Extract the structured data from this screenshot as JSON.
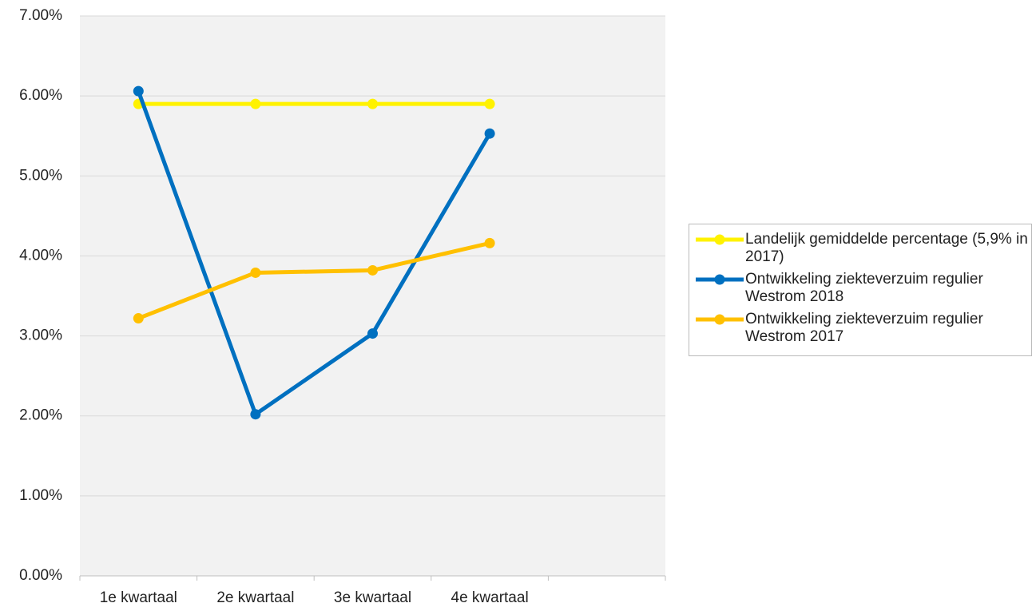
{
  "chart_data": {
    "type": "line",
    "categories": [
      "1e kwartaal",
      "2e kwartaal",
      "3e kwartaal",
      "4e kwartaal",
      null
    ],
    "series": [
      {
        "name": "Landelijk gemiddelde percentage (5,9% in 2017)",
        "color": "#fff200",
        "values": [
          5.9,
          5.9,
          5.9,
          5.9,
          null
        ]
      },
      {
        "name": "Ontwikkeling ziekteverzuim regulier Westrom 2018",
        "color": "#0070c0",
        "values": [
          6.06,
          2.02,
          3.03,
          5.53,
          null
        ]
      },
      {
        "name": "Ontwikkeling ziekteverzuim regulier Westrom 2017",
        "color": "#ffc000",
        "values": [
          3.22,
          3.79,
          3.82,
          4.16,
          null
        ]
      }
    ],
    "ylim": [
      0,
      7
    ],
    "yticks": [
      {
        "value": 0,
        "label": "0.00%"
      },
      {
        "value": 1,
        "label": "1.00%"
      },
      {
        "value": 2,
        "label": "2.00%"
      },
      {
        "value": 3,
        "label": "3.00%"
      },
      {
        "value": 4,
        "label": "4.00%"
      },
      {
        "value": 5,
        "label": "5.00%"
      },
      {
        "value": 6,
        "label": "6.00%"
      },
      {
        "value": 7,
        "label": "7.00%"
      }
    ],
    "grid": true,
    "legend": "right"
  }
}
